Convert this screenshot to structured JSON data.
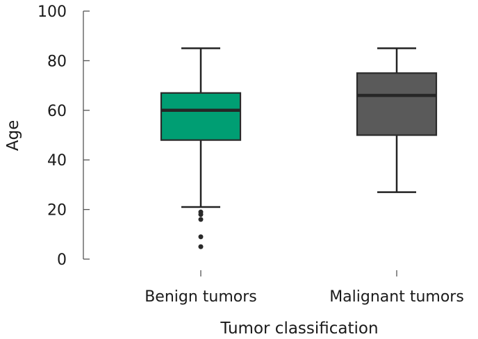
{
  "chart_data": {
    "type": "box",
    "xlabel": "Tumor classification",
    "ylabel": "Age",
    "ylim": [
      0,
      100
    ],
    "yticks": [
      "0",
      "20",
      "40",
      "60",
      "80",
      "100"
    ],
    "grid": false,
    "legend": "none",
    "categories": [
      "Benign tumors",
      "Malignant tumors"
    ],
    "boxes": [
      {
        "category": "Benign tumors",
        "whisker_low": 21,
        "q1": 48,
        "median": 60,
        "q3": 67,
        "whisker_high": 85,
        "outliers": [
          19,
          18,
          16,
          9,
          5
        ],
        "color": "#009E73"
      },
      {
        "category": "Malignant tumors",
        "whisker_low": 27,
        "q1": 50,
        "median": 66,
        "q3": 75,
        "whisker_high": 85,
        "outliers": [],
        "color": "#5A5A5A"
      }
    ]
  }
}
